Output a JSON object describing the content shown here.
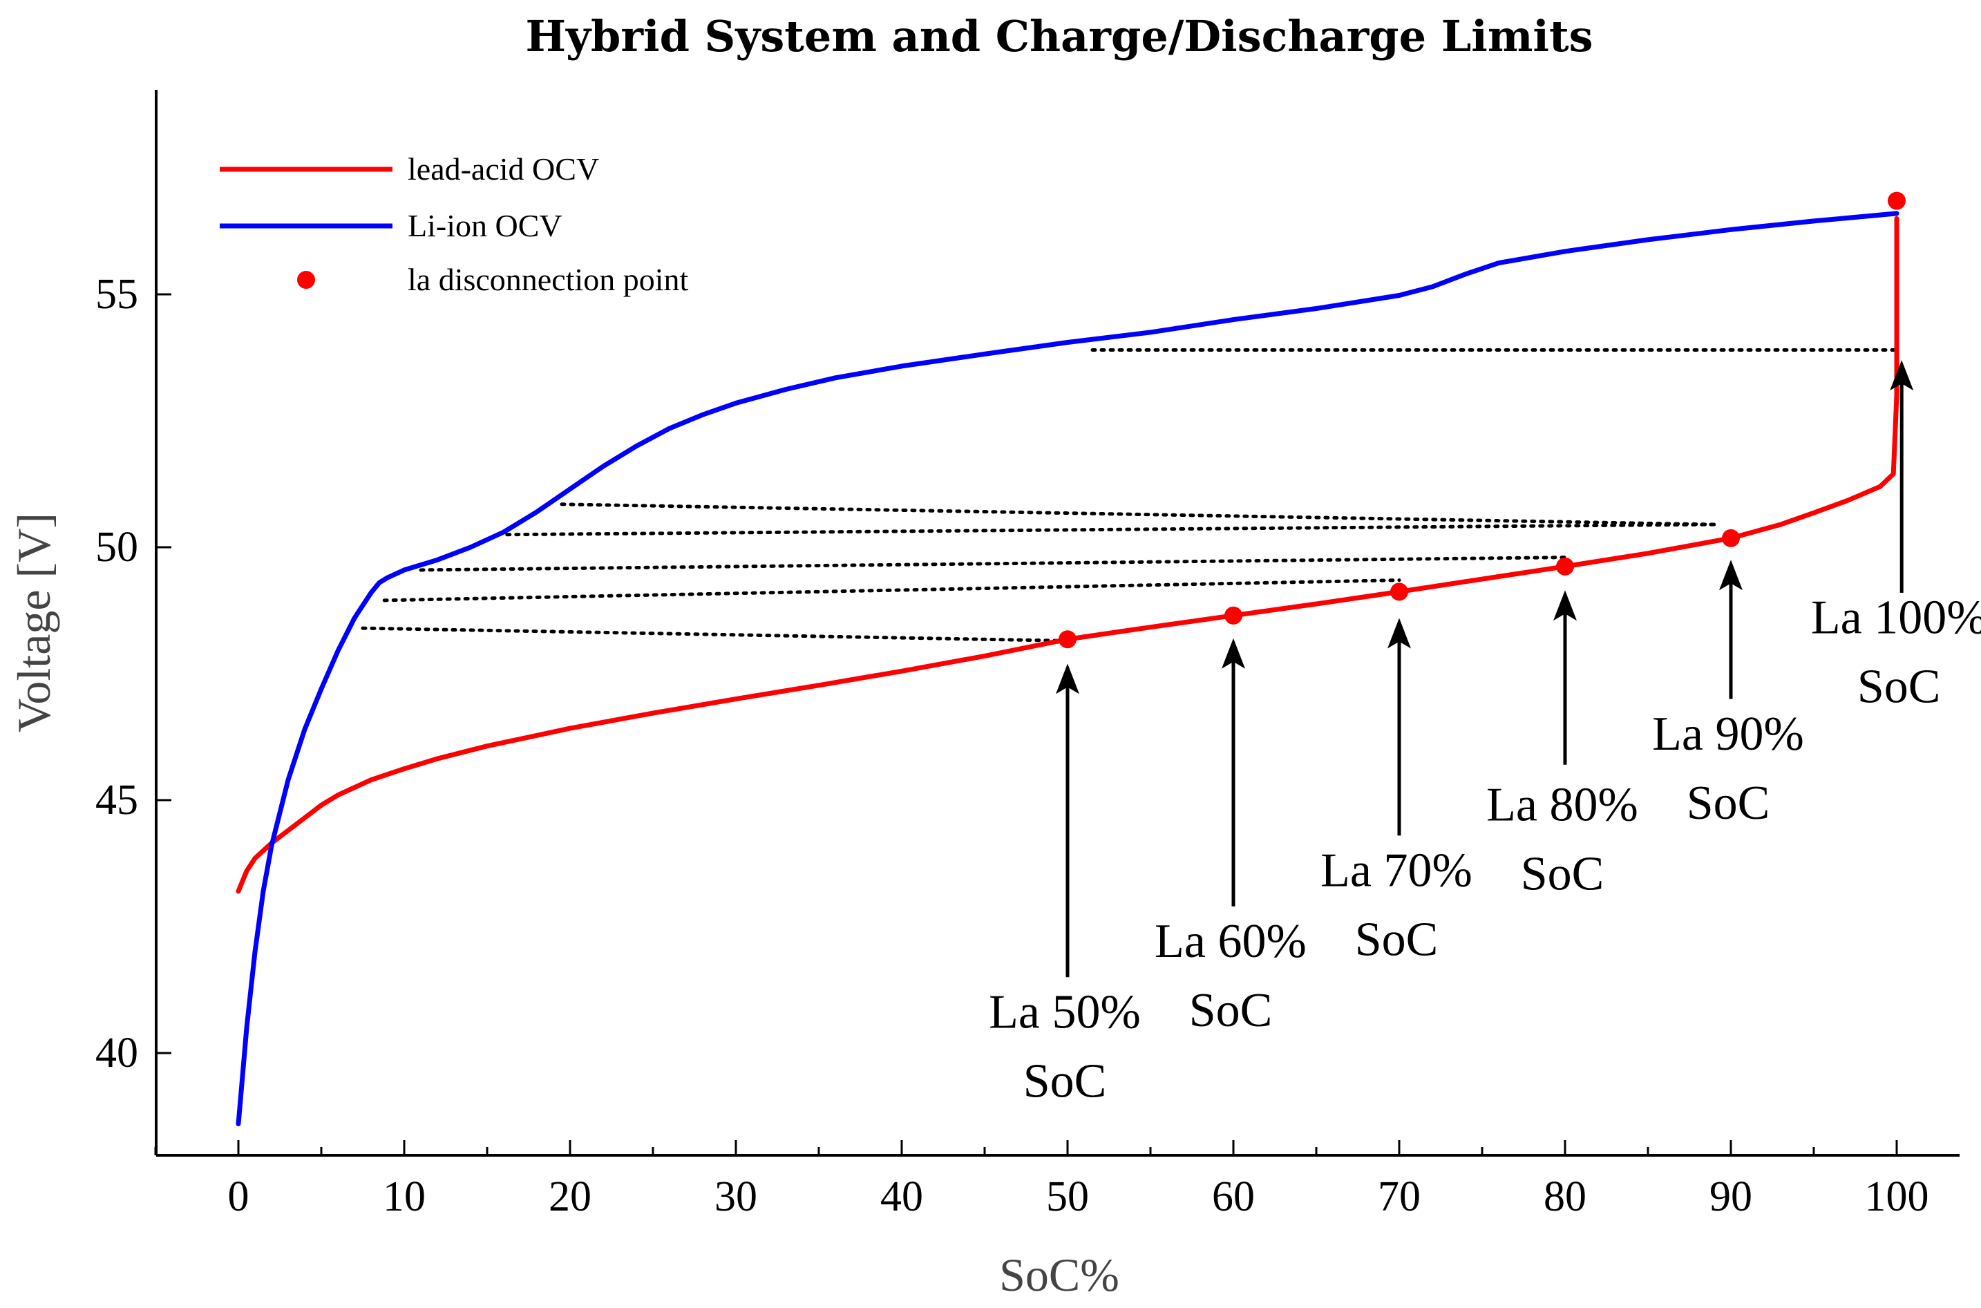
{
  "chart_data": {
    "type": "line",
    "title": "Hybrid System and Charge/Discharge Limits",
    "xlabel": "SoC%",
    "ylabel": "Voltage [V]",
    "xlim": [
      -5,
      103
    ],
    "ylim": [
      38,
      59
    ],
    "xticks": [
      0,
      10,
      20,
      30,
      40,
      50,
      60,
      70,
      80,
      90,
      100
    ],
    "yticks": [
      40,
      45,
      50,
      55
    ],
    "grid": false,
    "legend_position": "top-left",
    "legend": [
      {
        "label": "lead-acid OCV",
        "kind": "line",
        "color": "#ff0000"
      },
      {
        "label": "Li-ion OCV",
        "kind": "line",
        "color": "#0000ff"
      },
      {
        "label": "la disconnection point",
        "kind": "marker",
        "color": "#ff0000"
      }
    ],
    "series": [
      {
        "name": "lead-acid OCV",
        "color": "#ff0000",
        "points": [
          [
            0,
            43.2
          ],
          [
            0.5,
            43.6
          ],
          [
            1,
            43.85
          ],
          [
            2,
            44.15
          ],
          [
            3,
            44.4
          ],
          [
            4,
            44.65
          ],
          [
            5,
            44.9
          ],
          [
            6,
            45.1
          ],
          [
            7,
            45.25
          ],
          [
            8,
            45.4
          ],
          [
            10,
            45.62
          ],
          [
            12,
            45.82
          ],
          [
            15,
            46.07
          ],
          [
            20,
            46.42
          ],
          [
            25,
            46.72
          ],
          [
            30,
            47.0
          ],
          [
            35,
            47.27
          ],
          [
            40,
            47.55
          ],
          [
            45,
            47.85
          ],
          [
            50,
            48.18
          ],
          [
            55,
            48.42
          ],
          [
            60,
            48.65
          ],
          [
            65,
            48.88
          ],
          [
            70,
            49.12
          ],
          [
            75,
            49.37
          ],
          [
            80,
            49.62
          ],
          [
            85,
            49.88
          ],
          [
            90,
            50.18
          ],
          [
            93,
            50.45
          ],
          [
            95,
            50.68
          ],
          [
            97,
            50.92
          ],
          [
            99,
            51.2
          ],
          [
            99.8,
            51.45
          ],
          [
            100,
            53.0
          ],
          [
            100,
            56.5
          ]
        ]
      },
      {
        "name": "Li-ion OCV",
        "color": "#0000ff",
        "points": [
          [
            0,
            38.6
          ],
          [
            0.5,
            40.5
          ],
          [
            1,
            42.0
          ],
          [
            1.5,
            43.2
          ],
          [
            2,
            44.1
          ],
          [
            3,
            45.4
          ],
          [
            4,
            46.4
          ],
          [
            5,
            47.2
          ],
          [
            6,
            47.95
          ],
          [
            7,
            48.6
          ],
          [
            8,
            49.1
          ],
          [
            8.5,
            49.3
          ],
          [
            9,
            49.4
          ],
          [
            10,
            49.55
          ],
          [
            12,
            49.75
          ],
          [
            14,
            50.0
          ],
          [
            16,
            50.3
          ],
          [
            18,
            50.7
          ],
          [
            20,
            51.15
          ],
          [
            22,
            51.6
          ],
          [
            24,
            52.0
          ],
          [
            26,
            52.35
          ],
          [
            28,
            52.62
          ],
          [
            30,
            52.85
          ],
          [
            33,
            53.12
          ],
          [
            36,
            53.35
          ],
          [
            40,
            53.58
          ],
          [
            45,
            53.82
          ],
          [
            50,
            54.05
          ],
          [
            55,
            54.25
          ],
          [
            60,
            54.5
          ],
          [
            65,
            54.72
          ],
          [
            70,
            54.98
          ],
          [
            72,
            55.15
          ],
          [
            74,
            55.4
          ],
          [
            76,
            55.62
          ],
          [
            80,
            55.85
          ],
          [
            85,
            56.08
          ],
          [
            90,
            56.28
          ],
          [
            95,
            56.45
          ],
          [
            100,
            56.6
          ]
        ]
      }
    ],
    "disconnection_points": [
      {
        "x": 50,
        "y": 48.18
      },
      {
        "x": 60,
        "y": 48.65
      },
      {
        "x": 70,
        "y": 49.12
      },
      {
        "x": 80,
        "y": 49.62
      },
      {
        "x": 90,
        "y": 50.18
      },
      {
        "x": 100,
        "y": 56.85
      }
    ],
    "dotted_links": [
      {
        "li_x": 7.5,
        "la_x": 50,
        "y_start": 48.4,
        "y_end": 48.15
      },
      {
        "li_x": 8.8,
        "la_x": 70,
        "y_start": 48.95,
        "y_end": 49.35
      },
      {
        "li_x": 11,
        "la_x": 80,
        "y_start": 49.55,
        "y_end": 49.8
      },
      {
        "li_x": 16.2,
        "la_x": 89,
        "y_start": 50.25,
        "y_end": 50.45
      },
      {
        "li_x": 19.5,
        "la_x": 89,
        "y_start": 50.85,
        "y_end": 50.45
      },
      {
        "li_x": 51.5,
        "la_x": 100,
        "y_start": 53.9,
        "y_end": 53.9
      }
    ],
    "annotations": [
      {
        "line1": "La 50%",
        "line2": "SoC",
        "x": 50,
        "arrow_tip_y": 47.7,
        "arrow_tail_y": 41.5,
        "label_y": 40.5
      },
      {
        "line1": "La 60%",
        "line2": "SoC",
        "x": 60,
        "arrow_tip_y": 48.2,
        "arrow_tail_y": 42.9,
        "label_y": 41.9
      },
      {
        "line1": "La 70%",
        "line2": "SoC",
        "x": 70,
        "arrow_tip_y": 48.6,
        "arrow_tail_y": 44.3,
        "label_y": 43.3
      },
      {
        "line1": "La 80%",
        "line2": "SoC",
        "x": 80,
        "arrow_tip_y": 49.15,
        "arrow_tail_y": 45.7,
        "label_y": 44.6
      },
      {
        "line1": "La 90%",
        "line2": "SoC",
        "x": 90,
        "arrow_tip_y": 49.75,
        "arrow_tail_y": 47.0,
        "label_y": 46.0
      },
      {
        "line1": "La 100%",
        "line2": "SoC",
        "x": 100.3,
        "arrow_tip_y": 53.7,
        "arrow_tail_y": 49.1,
        "label_y": 48.3
      }
    ]
  }
}
